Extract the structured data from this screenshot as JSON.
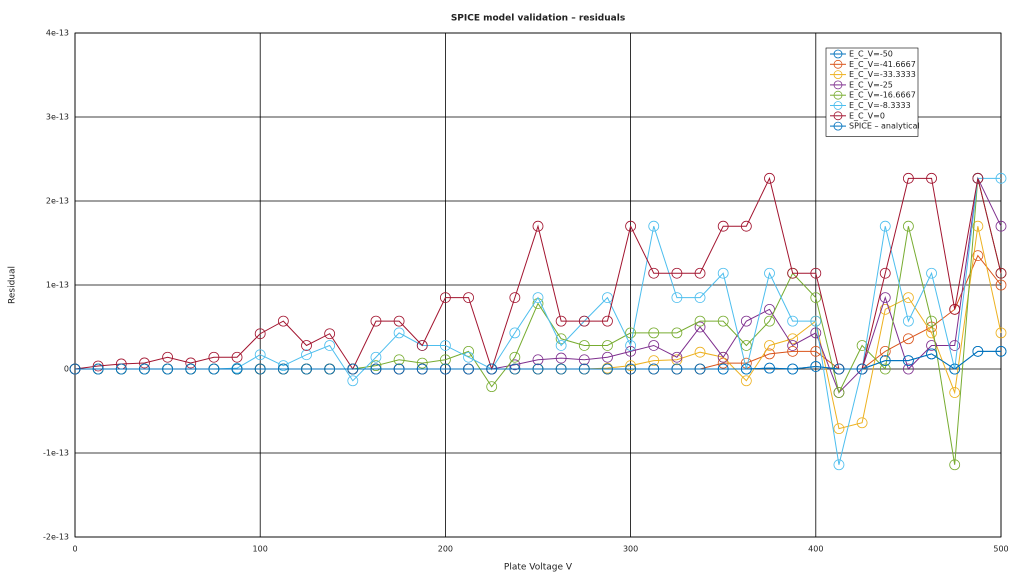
{
  "chart_data": {
    "type": "line",
    "title": "SPICE model validation – residuals",
    "x_label": "Plate Voltage V",
    "y_label": "Residual",
    "x": [
      0,
      12.5,
      25,
      37.5,
      50,
      62.5,
      75,
      87.5,
      100,
      112.5,
      125,
      137.5,
      150,
      162.5,
      175,
      187.5,
      200,
      212.5,
      225,
      237.5,
      250,
      262.5,
      275,
      287.5,
      300,
      312.5,
      325,
      337.5,
      350,
      362.5,
      375,
      387.5,
      400,
      412.5,
      425,
      437.5,
      450,
      462.5,
      475,
      487.5,
      500
    ],
    "xlim": [
      0,
      500
    ],
    "xticks": [
      0,
      100,
      200,
      300,
      400,
      500
    ],
    "ylim": [
      -2e-13,
      4e-13
    ],
    "yticks": [
      -2e-13,
      -1e-13,
      0,
      1e-13,
      2e-13,
      3e-13,
      4e-13
    ],
    "grid": true,
    "legend": "upper right",
    "markers": "circle",
    "series": [
      {
        "name": "E_C_V=-50",
        "color": "#0072bd",
        "values": [
          0,
          0,
          0,
          0,
          0,
          0,
          0,
          0,
          0,
          0,
          0,
          0,
          0,
          0,
          0,
          0,
          0,
          0,
          0,
          0,
          0,
          0,
          0,
          0,
          0,
          0,
          0,
          0,
          0,
          0,
          1e-15,
          0,
          3e-15,
          0,
          0,
          1e-14,
          1e-14,
          1.8e-14,
          0,
          2.1e-14,
          2.1e-14
        ]
      },
      {
        "name": "E_C_V=-41.6667",
        "color": "#d95319",
        "values": [
          0,
          0,
          0,
          0,
          0,
          0,
          0,
          0,
          0,
          0,
          0,
          0,
          0,
          0,
          0,
          0,
          0,
          0,
          0,
          0,
          0,
          0,
          0,
          0,
          0,
          0,
          0,
          0,
          7e-15,
          7e-15,
          1.8e-14,
          2.1e-14,
          2.1e-14,
          0,
          0,
          2.1e-14,
          3.6e-14,
          5e-14,
          7.1e-14,
          1.35e-13,
          1e-13
        ]
      },
      {
        "name": "E_C_V=-33.3333",
        "color": "#edb120",
        "values": [
          0,
          0,
          0,
          0,
          0,
          0,
          0,
          0,
          0,
          0,
          0,
          0,
          0,
          0,
          0,
          0,
          0,
          0,
          0,
          0,
          0,
          0,
          0,
          1e-15,
          4e-15,
          1e-14,
          1.1e-14,
          2e-14,
          1.4e-14,
          -1.4e-14,
          2.8e-14,
          3.6e-14,
          5.7e-14,
          -7.1e-14,
          -6.4e-14,
          7.1e-14,
          8.5e-14,
          4.3e-14,
          -2.8e-14,
          1.7e-13,
          4.3e-14
        ]
      },
      {
        "name": "E_C_V=-25",
        "color": "#7e2f8e",
        "values": [
          0,
          0,
          0,
          0,
          0,
          0,
          0,
          0,
          0,
          0,
          0,
          0,
          0,
          0,
          0,
          0,
          0,
          0,
          0,
          5e-15,
          1.1e-14,
          1.3e-14,
          1.1e-14,
          1.4e-14,
          2.1e-14,
          2.8e-14,
          1.4e-14,
          5e-14,
          1.4e-14,
          5.7e-14,
          7.1e-14,
          2.8e-14,
          4.3e-14,
          -2.8e-14,
          0,
          8.5e-14,
          0,
          2.8e-14,
          2.8e-14,
          2.27e-13,
          1.7e-13
        ]
      },
      {
        "name": "E_C_V=-16.6667",
        "color": "#77ac30",
        "values": [
          0,
          0,
          0,
          0,
          0,
          0,
          0,
          0,
          0,
          0,
          0,
          0,
          0,
          4e-15,
          1.1e-14,
          7e-15,
          1.1e-14,
          2.1e-14,
          -2.1e-14,
          1.4e-14,
          7.8e-14,
          3.6e-14,
          2.8e-14,
          2.8e-14,
          4.3e-14,
          4.3e-14,
          4.3e-14,
          5.7e-14,
          5.7e-14,
          2.8e-14,
          5.7e-14,
          1.14e-13,
          8.5e-14,
          -2.8e-14,
          2.8e-14,
          0,
          1.7e-13,
          5.7e-14,
          -1.14e-13,
          2.27e-13,
          1.14e-13
        ]
      },
      {
        "name": "E_C_V=-8.3333",
        "color": "#4dbeee",
        "values": [
          0,
          0,
          0,
          0,
          0,
          0,
          0,
          1e-15,
          1.7e-14,
          4e-15,
          1.7e-14,
          2.8e-14,
          -1.4e-14,
          1.4e-14,
          4.3e-14,
          2.8e-14,
          2.8e-14,
          1.4e-14,
          0,
          4.3e-14,
          8.5e-14,
          2.8e-14,
          5.7e-14,
          8.5e-14,
          2.8e-14,
          1.7e-13,
          8.5e-14,
          8.5e-14,
          1.14e-13,
          0,
          1.14e-13,
          5.7e-14,
          5.7e-14,
          -1.14e-13,
          0,
          1.7e-13,
          5.7e-14,
          1.14e-13,
          0,
          2.27e-13,
          2.27e-13
        ]
      },
      {
        "name": "E_C_V=0",
        "color": "#a2142f",
        "values": [
          0,
          3.6e-15,
          6e-15,
          7.2e-15,
          1.4e-14,
          7.2e-15,
          1.4e-14,
          1.4e-14,
          4.2e-14,
          5.7e-14,
          2.8e-14,
          4.2e-14,
          0,
          5.7e-14,
          5.7e-14,
          2.8e-14,
          8.5e-14,
          8.5e-14,
          0,
          8.5e-14,
          1.7e-13,
          5.7e-14,
          5.7e-14,
          5.7e-14,
          1.7e-13,
          1.14e-13,
          1.14e-13,
          1.14e-13,
          1.7e-13,
          1.7e-13,
          2.27e-13,
          1.14e-13,
          1.14e-13,
          0,
          0,
          1.14e-13,
          2.27e-13,
          2.27e-13,
          7.1e-14,
          2.27e-13,
          1.14e-13
        ]
      },
      {
        "name": "SPICE – analytical",
        "color": "#0072bd",
        "values": [
          0,
          0,
          0,
          0,
          0,
          0,
          0,
          0,
          0,
          0,
          0,
          0,
          0,
          0,
          0,
          0,
          0,
          0,
          0,
          0,
          0,
          0,
          0,
          0,
          0,
          0,
          0,
          0,
          0,
          0,
          1e-15,
          0,
          3e-15,
          0,
          0,
          1e-14,
          1e-14,
          1.8e-14,
          0,
          2.1e-14,
          2.1e-14
        ]
      }
    ]
  }
}
